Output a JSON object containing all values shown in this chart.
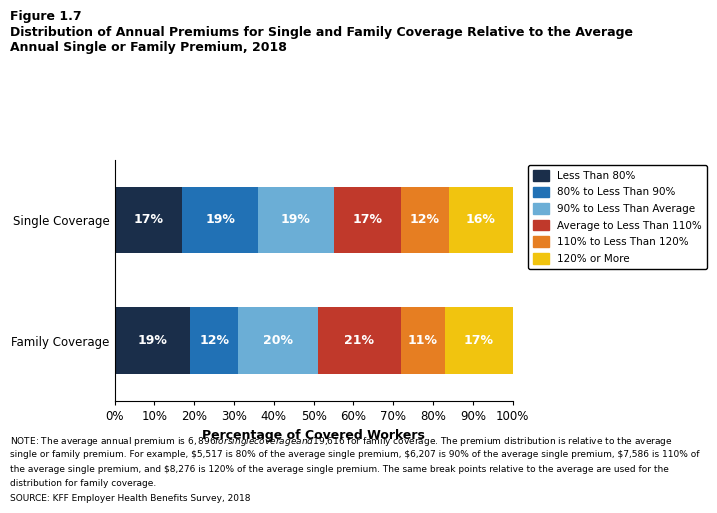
{
  "title_line1": "Figure 1.7",
  "title_line2": "Distribution of Annual Premiums for Single and Family Coverage Relative to the Average\nAnnual Single or Family Premium, 2018",
  "categories": [
    "Single Coverage",
    "Family Coverage"
  ],
  "segments": [
    {
      "label": "Less Than 80%",
      "color": "#1a2e4a",
      "values": [
        17,
        19
      ]
    },
    {
      "label": "80% to Less Than 90%",
      "color": "#2171b5",
      "values": [
        19,
        12
      ]
    },
    {
      "label": "90% to Less Than Average",
      "color": "#6baed6",
      "values": [
        19,
        20
      ]
    },
    {
      "label": "Average to Less Than 110%",
      "color": "#c0392b",
      "values": [
        17,
        21
      ]
    },
    {
      "label": "110% to Less Than 120%",
      "color": "#e67e22",
      "values": [
        12,
        11
      ]
    },
    {
      "label": "120% or More",
      "color": "#f1c40f",
      "values": [
        16,
        17
      ]
    }
  ],
  "xlabel": "Percentage of Covered Workers",
  "xticks": [
    0,
    10,
    20,
    30,
    40,
    50,
    60,
    70,
    80,
    90,
    100
  ],
  "xtick_labels": [
    "0%",
    "10%",
    "20%",
    "30%",
    "40%",
    "50%",
    "60%",
    "70%",
    "80%",
    "90%",
    "100%"
  ],
  "note_line1": "NOTE: The average annual premium is $6,896 for single coverage and $19,616 for family coverage. The premium distribution is relative to the average",
  "note_line2": "single or family premium. For example, $5,517 is 80% of the average single premium, $6,207 is 90% of the average single premium, $7,586 is 110% of",
  "note_line3": "the average single premium, and $8,276 is 120% of the average single premium. The same break points relative to the average are used for the",
  "note_line4": "distribution for family coverage.",
  "source": "SOURCE: KFF Employer Health Benefits Survey, 2018",
  "bar_height": 0.55,
  "text_color_white": "#ffffff",
  "background_color": "#ffffff",
  "legend_fontsize": 7.5,
  "label_fontsize": 9,
  "axis_fontsize": 8.5
}
